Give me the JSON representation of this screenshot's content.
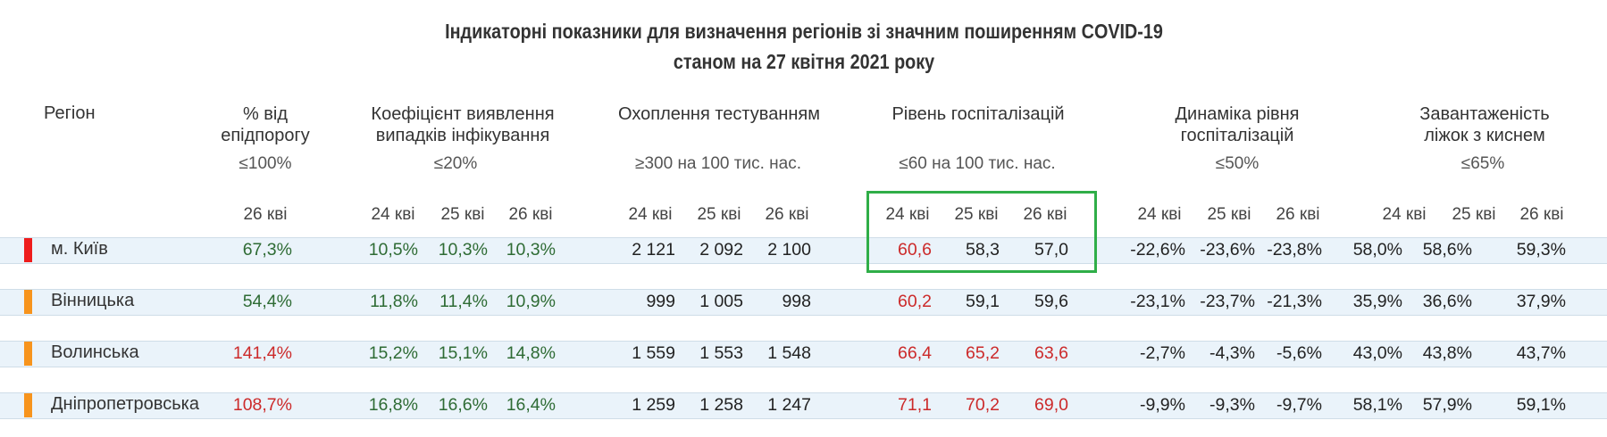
{
  "title_line1": "Індикаторні показники для визначення регіонів зі значним поширенням COVID-19",
  "title_line2": "станом на 27 квітня 2021 року",
  "colors": {
    "green": "#2e6b34",
    "red": "#cc2a2a",
    "marker_red": "#ee1c1c",
    "marker_orange": "#f7941d",
    "highlight": "#2fae48",
    "row_band": "#eaf3fa"
  },
  "headers": {
    "region": "Регіон",
    "epi_l1": "% від",
    "epi_l2": "епідпорогу",
    "detect_l1": "Коефіцієнт виявлення",
    "detect_l2": "випадків інфікування",
    "test": "Охоплення тестуванням",
    "hosp": "Рівень госпіталізацій",
    "dyn_l1": "Динаміка рівня",
    "dyn_l2": "госпіталізацій",
    "oxy_l1": "Завантаженість",
    "oxy_l2": "ліжок з киснем"
  },
  "thresholds": {
    "epi": "≤100%",
    "detect": "≤20%",
    "test": "≥300 на 100 тис. нас.",
    "hosp": "≤60 на 100 тис. нас.",
    "dyn": "≤50%",
    "oxy": "≤65%"
  },
  "dates": {
    "epi": [
      "26 кві"
    ],
    "detect": [
      "24 кві",
      "25 кві",
      "26 кві"
    ],
    "test": [
      "24 кві",
      "25 кві",
      "26 кві"
    ],
    "hosp": [
      "24 кві",
      "25 кві",
      "26 кві"
    ],
    "dyn": [
      "24 кві",
      "25 кві",
      "26 кві"
    ],
    "oxy": [
      "24 кві",
      "25 кві",
      "26 кві"
    ]
  },
  "chart_data": {
    "type": "table",
    "title": "Індикаторні показники для визначення регіонів зі значним поширенням COVID-19 станом на 27 квітня 2021 року",
    "rows": [
      {
        "region": "м. Київ",
        "marker": "red",
        "epi": [
          "67,3%"
        ],
        "epi_c": [
          "green"
        ],
        "detect": [
          "10,5%",
          "10,3%",
          "10,3%"
        ],
        "detect_c": [
          "green",
          "green",
          "green"
        ],
        "test": [
          "2 121",
          "2 092",
          "2 100"
        ],
        "test_c": [
          "dark",
          "dark",
          "dark"
        ],
        "hosp": [
          "60,6",
          "58,3",
          "57,0"
        ],
        "hosp_c": [
          "red",
          "dark",
          "dark"
        ],
        "dyn": [
          "-22,6%",
          "-23,6%",
          "-23,8%"
        ],
        "dyn_c": [
          "dark",
          "dark",
          "dark"
        ],
        "oxy": [
          "58,0%",
          "58,6%",
          "59,3%"
        ],
        "oxy_c": [
          "dark",
          "dark",
          "dark"
        ]
      },
      {
        "region": "Вінницька",
        "marker": "orange",
        "epi": [
          "54,4%"
        ],
        "epi_c": [
          "green"
        ],
        "detect": [
          "11,8%",
          "11,4%",
          "10,9%"
        ],
        "detect_c": [
          "green",
          "green",
          "green"
        ],
        "test": [
          "999",
          "1 005",
          "998"
        ],
        "test_c": [
          "dark",
          "dark",
          "dark"
        ],
        "hosp": [
          "60,2",
          "59,1",
          "59,6"
        ],
        "hosp_c": [
          "red",
          "dark",
          "dark"
        ],
        "dyn": [
          "-23,1%",
          "-23,7%",
          "-21,3%"
        ],
        "dyn_c": [
          "dark",
          "dark",
          "dark"
        ],
        "oxy": [
          "35,9%",
          "36,6%",
          "37,9%"
        ],
        "oxy_c": [
          "dark",
          "dark",
          "dark"
        ]
      },
      {
        "region": "Волинська",
        "marker": "orange",
        "epi": [
          "141,4%"
        ],
        "epi_c": [
          "red"
        ],
        "detect": [
          "15,2%",
          "15,1%",
          "14,8%"
        ],
        "detect_c": [
          "green",
          "green",
          "green"
        ],
        "test": [
          "1 559",
          "1 553",
          "1 548"
        ],
        "test_c": [
          "dark",
          "dark",
          "dark"
        ],
        "hosp": [
          "66,4",
          "65,2",
          "63,6"
        ],
        "hosp_c": [
          "red",
          "red",
          "red"
        ],
        "dyn": [
          "-2,7%",
          "-4,3%",
          "-5,6%"
        ],
        "dyn_c": [
          "dark",
          "dark",
          "dark"
        ],
        "oxy": [
          "43,0%",
          "43,8%",
          "43,7%"
        ],
        "oxy_c": [
          "dark",
          "dark",
          "dark"
        ]
      },
      {
        "region": "Дніпропетровська",
        "marker": "orange",
        "epi": [
          "108,7%"
        ],
        "epi_c": [
          "red"
        ],
        "detect": [
          "16,8%",
          "16,6%",
          "16,4%"
        ],
        "detect_c": [
          "green",
          "green",
          "green"
        ],
        "test": [
          "1 259",
          "1 258",
          "1 247"
        ],
        "test_c": [
          "dark",
          "dark",
          "dark"
        ],
        "hosp": [
          "71,1",
          "70,2",
          "69,0"
        ],
        "hosp_c": [
          "red",
          "red",
          "red"
        ],
        "dyn": [
          "-9,9%",
          "-9,3%",
          "-9,7%"
        ],
        "dyn_c": [
          "dark",
          "dark",
          "dark"
        ],
        "oxy": [
          "58,1%",
          "57,9%",
          "59,1%"
        ],
        "oxy_c": [
          "dark",
          "dark",
          "dark"
        ]
      }
    ]
  }
}
